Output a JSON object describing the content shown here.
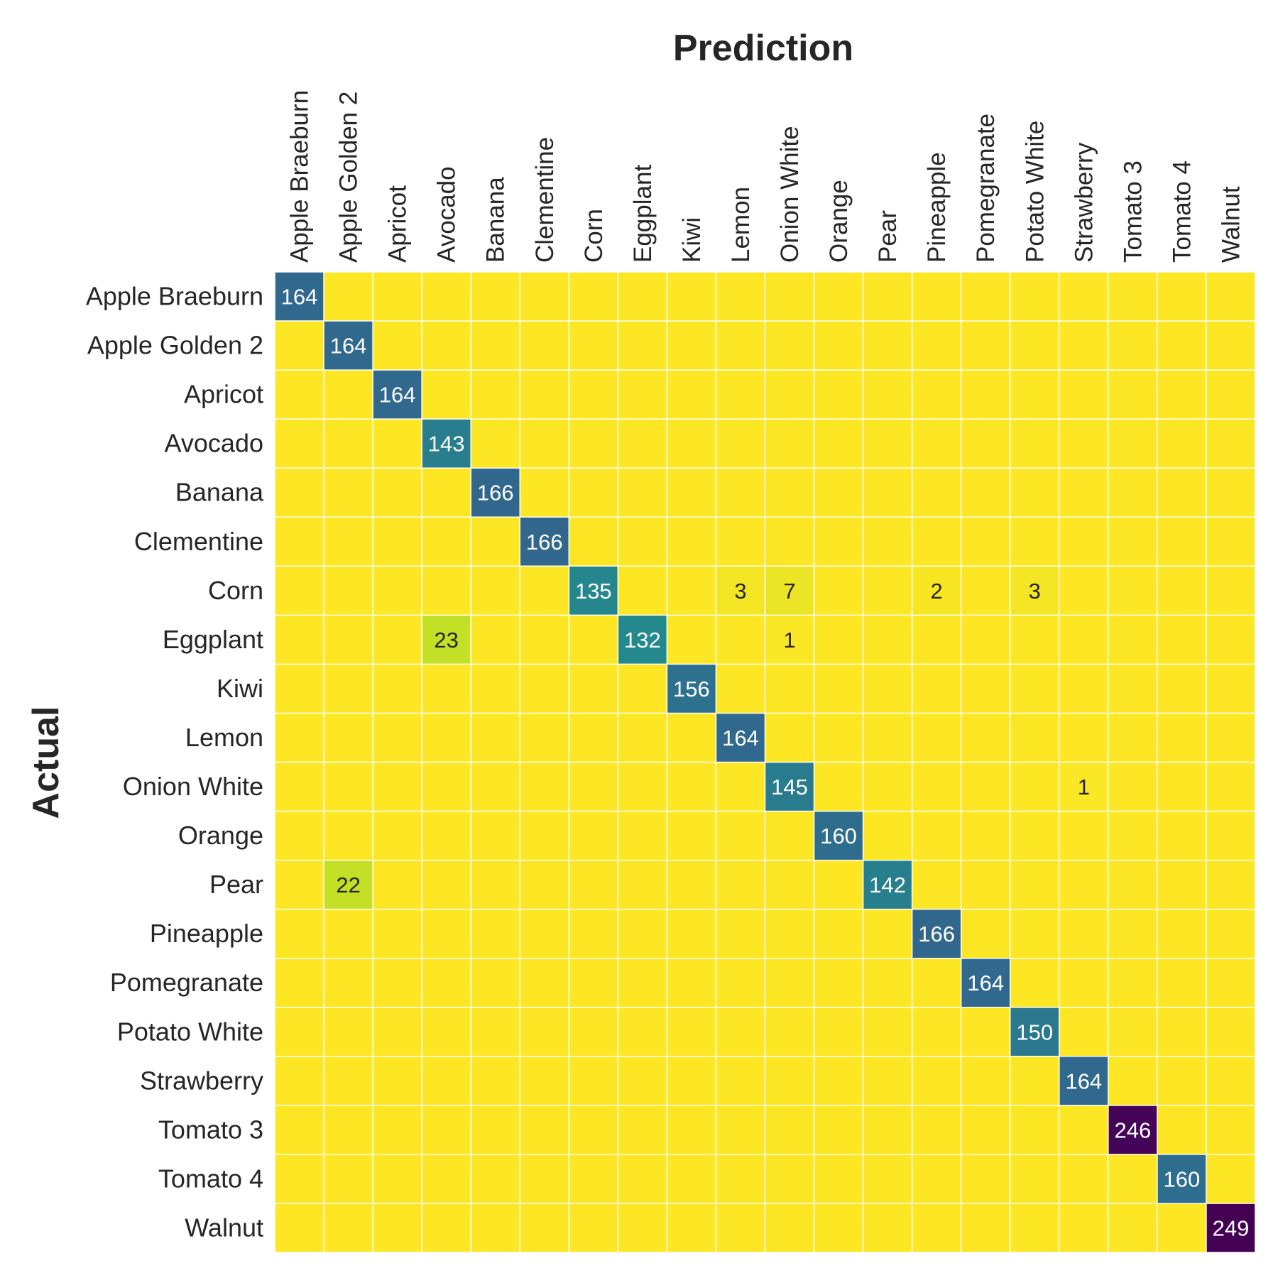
{
  "chart_data": {
    "type": "heatmap",
    "title": "",
    "xlabel": "Prediction",
    "ylabel": "Actual",
    "colormap": "viridis",
    "vmin": 0,
    "vmax": 249,
    "grid": true,
    "colorbar": false,
    "x_categories": [
      "Apple Braeburn",
      "Apple Golden 2",
      "Apricot",
      "Avocado",
      "Banana",
      "Clementine",
      "Corn",
      "Eggplant",
      "Kiwi",
      "Lemon",
      "Onion White",
      "Orange",
      "Pear",
      "Pineapple",
      "Pomegranate",
      "Potato White",
      "Strawberry",
      "Tomato 3",
      "Tomato 4",
      "Walnut"
    ],
    "y_categories": [
      "Apple Braeburn",
      "Apple Golden 2",
      "Apricot",
      "Avocado",
      "Banana",
      "Clementine",
      "Corn",
      "Eggplant",
      "Kiwi",
      "Lemon",
      "Onion White",
      "Orange",
      "Pear",
      "Pineapple",
      "Pomegranate",
      "Potato White",
      "Strawberry",
      "Tomato 3",
      "Tomato 4",
      "Walnut"
    ],
    "values": [
      [
        164,
        0,
        0,
        0,
        0,
        0,
        0,
        0,
        0,
        0,
        0,
        0,
        0,
        0,
        0,
        0,
        0,
        0,
        0,
        0
      ],
      [
        0,
        164,
        0,
        0,
        0,
        0,
        0,
        0,
        0,
        0,
        0,
        0,
        0,
        0,
        0,
        0,
        0,
        0,
        0,
        0
      ],
      [
        0,
        0,
        164,
        0,
        0,
        0,
        0,
        0,
        0,
        0,
        0,
        0,
        0,
        0,
        0,
        0,
        0,
        0,
        0,
        0
      ],
      [
        0,
        0,
        0,
        143,
        0,
        0,
        0,
        0,
        0,
        0,
        0,
        0,
        0,
        0,
        0,
        0,
        0,
        0,
        0,
        0
      ],
      [
        0,
        0,
        0,
        0,
        166,
        0,
        0,
        0,
        0,
        0,
        0,
        0,
        0,
        0,
        0,
        0,
        0,
        0,
        0,
        0
      ],
      [
        0,
        0,
        0,
        0,
        0,
        166,
        0,
        0,
        0,
        0,
        0,
        0,
        0,
        0,
        0,
        0,
        0,
        0,
        0,
        0
      ],
      [
        0,
        0,
        0,
        0,
        0,
        0,
        135,
        0,
        0,
        3,
        7,
        0,
        0,
        2,
        0,
        3,
        0,
        0,
        0,
        0
      ],
      [
        0,
        0,
        0,
        23,
        0,
        0,
        0,
        132,
        0,
        0,
        1,
        0,
        0,
        0,
        0,
        0,
        0,
        0,
        0,
        0
      ],
      [
        0,
        0,
        0,
        0,
        0,
        0,
        0,
        0,
        156,
        0,
        0,
        0,
        0,
        0,
        0,
        0,
        0,
        0,
        0,
        0
      ],
      [
        0,
        0,
        0,
        0,
        0,
        0,
        0,
        0,
        0,
        164,
        0,
        0,
        0,
        0,
        0,
        0,
        0,
        0,
        0,
        0
      ],
      [
        0,
        0,
        0,
        0,
        0,
        0,
        0,
        0,
        0,
        0,
        145,
        0,
        0,
        0,
        0,
        0,
        1,
        0,
        0,
        0
      ],
      [
        0,
        0,
        0,
        0,
        0,
        0,
        0,
        0,
        0,
        0,
        0,
        160,
        0,
        0,
        0,
        0,
        0,
        0,
        0,
        0
      ],
      [
        0,
        22,
        0,
        0,
        0,
        0,
        0,
        0,
        0,
        0,
        0,
        0,
        142,
        0,
        0,
        0,
        0,
        0,
        0,
        0
      ],
      [
        0,
        0,
        0,
        0,
        0,
        0,
        0,
        0,
        0,
        0,
        0,
        0,
        0,
        166,
        0,
        0,
        0,
        0,
        0,
        0
      ],
      [
        0,
        0,
        0,
        0,
        0,
        0,
        0,
        0,
        0,
        0,
        0,
        0,
        0,
        0,
        164,
        0,
        0,
        0,
        0,
        0
      ],
      [
        0,
        0,
        0,
        0,
        0,
        0,
        0,
        0,
        0,
        0,
        0,
        0,
        0,
        0,
        0,
        150,
        0,
        0,
        0,
        0
      ],
      [
        0,
        0,
        0,
        0,
        0,
        0,
        0,
        0,
        0,
        0,
        0,
        0,
        0,
        0,
        0,
        0,
        164,
        0,
        0,
        0
      ],
      [
        0,
        0,
        0,
        0,
        0,
        0,
        0,
        0,
        0,
        0,
        0,
        0,
        0,
        0,
        0,
        0,
        0,
        246,
        0,
        0
      ],
      [
        0,
        0,
        0,
        0,
        0,
        0,
        0,
        0,
        0,
        0,
        0,
        0,
        0,
        0,
        0,
        0,
        0,
        0,
        160,
        0
      ],
      [
        0,
        0,
        0,
        0,
        0,
        0,
        0,
        0,
        0,
        0,
        0,
        0,
        0,
        0,
        0,
        0,
        0,
        0,
        0,
        249
      ]
    ]
  }
}
